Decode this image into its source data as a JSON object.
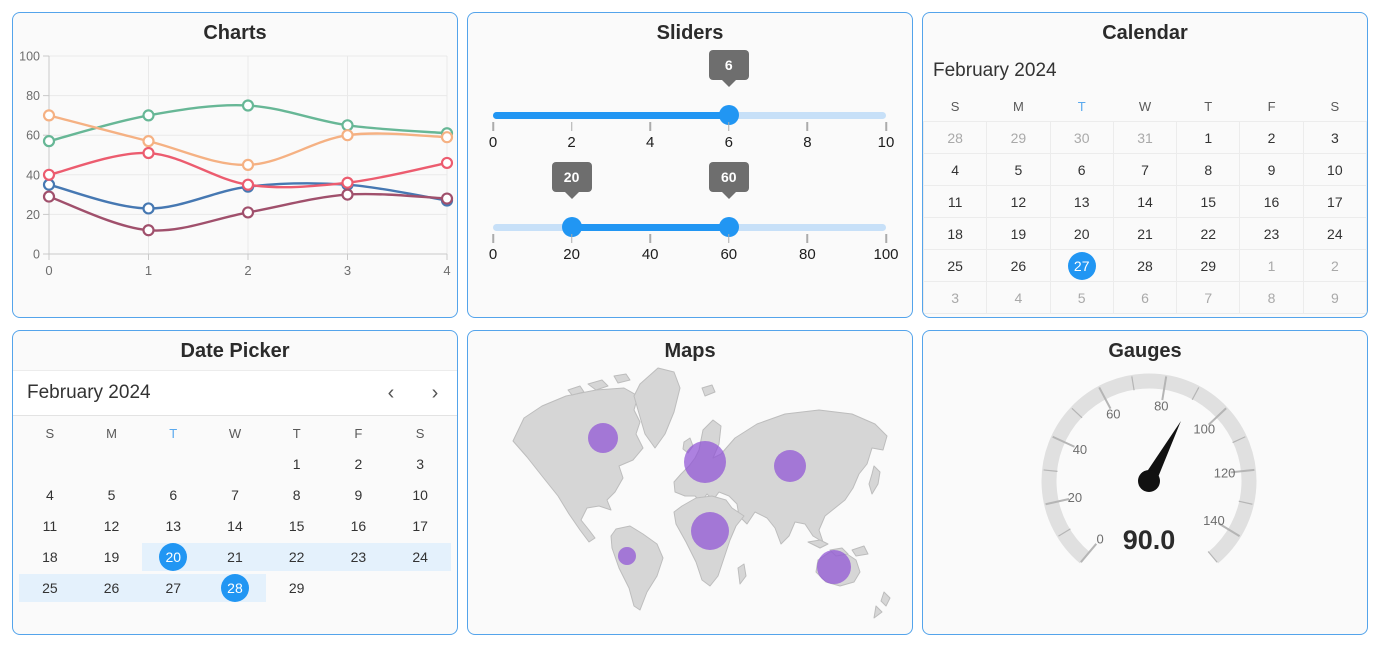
{
  "page": {
    "background": "#ffffff",
    "panel_background": "#fafafa",
    "panel_border_color": "#54a4eb"
  },
  "colors": {
    "accent_blue": "#2196f3",
    "light_track": "#c7e0f8",
    "tooltip_gray": "#6e6e6e",
    "range_band": "#e4f1fc",
    "weekday_highlight": "#5aa9ee",
    "muted_day": "#a9a9a9",
    "map_land": "#d6d6d6",
    "gauge_ring": "#e0e0e0"
  },
  "panels": {
    "charts": {
      "title": "Charts",
      "chart_data": {
        "type": "line",
        "x": [
          0,
          1,
          2,
          3,
          4
        ],
        "x_ticks": [
          "0",
          "1",
          "2",
          "3",
          "4"
        ],
        "y_ticks": [
          0,
          20,
          40,
          60,
          80,
          100
        ],
        "xlim": [
          0,
          4
        ],
        "ylim": [
          0,
          100
        ],
        "grid": true,
        "legend": "none",
        "series": [
          {
            "name": "series-blue",
            "color": "#4678b2",
            "values": [
              35,
              23,
              34,
              35,
              27
            ]
          },
          {
            "name": "series-green",
            "color": "#67b796",
            "values": [
              57,
              70,
              75,
              65,
              61
            ]
          },
          {
            "name": "series-orange",
            "color": "#f5b183",
            "values": [
              70,
              57,
              45,
              60,
              59
            ]
          },
          {
            "name": "series-red",
            "color": "#ec5c6f",
            "values": [
              40,
              51,
              35,
              36,
              46
            ]
          },
          {
            "name": "series-maroon",
            "color": "#a0506c",
            "values": [
              29,
              12,
              21,
              30,
              28
            ]
          }
        ]
      }
    },
    "sliders": {
      "title": "Sliders",
      "default_slider": {
        "min": 0,
        "max": 10,
        "value": 6,
        "tooltip": "6",
        "tick_labels": [
          0,
          2,
          4,
          6,
          8,
          10
        ]
      },
      "range_slider": {
        "min": 0,
        "max": 100,
        "values": [
          20,
          60
        ],
        "tooltips": [
          "20",
          "60"
        ],
        "tick_labels": [
          0,
          20,
          40,
          60,
          80,
          100
        ]
      }
    },
    "calendar": {
      "title": "Calendar",
      "month_label": "February 2024",
      "weekdays": [
        "S",
        "M",
        "T",
        "W",
        "T",
        "F",
        "S"
      ],
      "today_weekday_index": 2,
      "selected_day": "27",
      "weeks": [
        [
          {
            "d": "28",
            "m": 1
          },
          {
            "d": "29",
            "m": 1
          },
          {
            "d": "30",
            "m": 1
          },
          {
            "d": "31",
            "m": 1
          },
          {
            "d": "1"
          },
          {
            "d": "2"
          },
          {
            "d": "3"
          }
        ],
        [
          {
            "d": "4"
          },
          {
            "d": "5"
          },
          {
            "d": "6"
          },
          {
            "d": "7"
          },
          {
            "d": "8"
          },
          {
            "d": "9"
          },
          {
            "d": "10"
          }
        ],
        [
          {
            "d": "11"
          },
          {
            "d": "12"
          },
          {
            "d": "13"
          },
          {
            "d": "14"
          },
          {
            "d": "15"
          },
          {
            "d": "16"
          },
          {
            "d": "17"
          }
        ],
        [
          {
            "d": "18"
          },
          {
            "d": "19"
          },
          {
            "d": "20"
          },
          {
            "d": "21"
          },
          {
            "d": "22"
          },
          {
            "d": "23"
          },
          {
            "d": "24"
          }
        ],
        [
          {
            "d": "25"
          },
          {
            "d": "26"
          },
          {
            "d": "27",
            "sel": 1
          },
          {
            "d": "28"
          },
          {
            "d": "29"
          },
          {
            "d": "1",
            "m": 1
          },
          {
            "d": "2",
            "m": 1
          }
        ],
        [
          {
            "d": "3",
            "m": 1
          },
          {
            "d": "4",
            "m": 1
          },
          {
            "d": "5",
            "m": 1
          },
          {
            "d": "6",
            "m": 1
          },
          {
            "d": "7",
            "m": 1
          },
          {
            "d": "8",
            "m": 1
          },
          {
            "d": "9",
            "m": 1
          }
        ]
      ]
    },
    "datepicker": {
      "title": "Date Picker",
      "month_label": "February 2024",
      "prev_label": "‹",
      "next_label": "›",
      "weekdays": [
        "S",
        "M",
        "T",
        "W",
        "T",
        "F",
        "S"
      ],
      "today_weekday_index": 2,
      "range_start": "20",
      "range_end": "28",
      "weeks": [
        [
          {},
          {},
          {},
          {},
          {
            "d": "1"
          },
          {
            "d": "2"
          },
          {
            "d": "3"
          }
        ],
        [
          {
            "d": "4"
          },
          {
            "d": "5"
          },
          {
            "d": "6"
          },
          {
            "d": "7"
          },
          {
            "d": "8"
          },
          {
            "d": "9"
          },
          {
            "d": "10"
          }
        ],
        [
          {
            "d": "11"
          },
          {
            "d": "12"
          },
          {
            "d": "13"
          },
          {
            "d": "14"
          },
          {
            "d": "15"
          },
          {
            "d": "16"
          },
          {
            "d": "17"
          }
        ],
        [
          {
            "d": "18"
          },
          {
            "d": "19"
          },
          {
            "d": "20",
            "sel": 1,
            "r": 1
          },
          {
            "d": "21",
            "r": 1
          },
          {
            "d": "22",
            "r": 1
          },
          {
            "d": "23",
            "r": 1
          },
          {
            "d": "24",
            "r": 1
          }
        ],
        [
          {
            "d": "25",
            "r": 1
          },
          {
            "d": "26",
            "r": 1
          },
          {
            "d": "27",
            "r": 1
          },
          {
            "d": "28",
            "sel": 1,
            "r": 1
          },
          {
            "d": "29"
          },
          {},
          {}
        ]
      ]
    },
    "maps": {
      "title": "Maps",
      "bubble_color": "#8f52d6",
      "bubbles": [
        {
          "name": "canada",
          "x": 135,
          "y": 72,
          "r": 15
        },
        {
          "name": "europe",
          "x": 237,
          "y": 96,
          "r": 21
        },
        {
          "name": "central-asia",
          "x": 322,
          "y": 100,
          "r": 16
        },
        {
          "name": "africa",
          "x": 242,
          "y": 165,
          "r": 19
        },
        {
          "name": "south-america",
          "x": 159,
          "y": 190,
          "r": 9
        },
        {
          "name": "australia",
          "x": 366,
          "y": 201,
          "r": 17
        }
      ]
    },
    "gauges": {
      "title": "Gauges",
      "gauge": {
        "min": 0,
        "max": 150,
        "major_interval": 20,
        "minor_interval": 10,
        "start_angle": 230,
        "sweep": 280,
        "labels": [
          0,
          20,
          40,
          60,
          80,
          100,
          120,
          140
        ],
        "value": 90,
        "value_label": "90.0"
      }
    }
  }
}
